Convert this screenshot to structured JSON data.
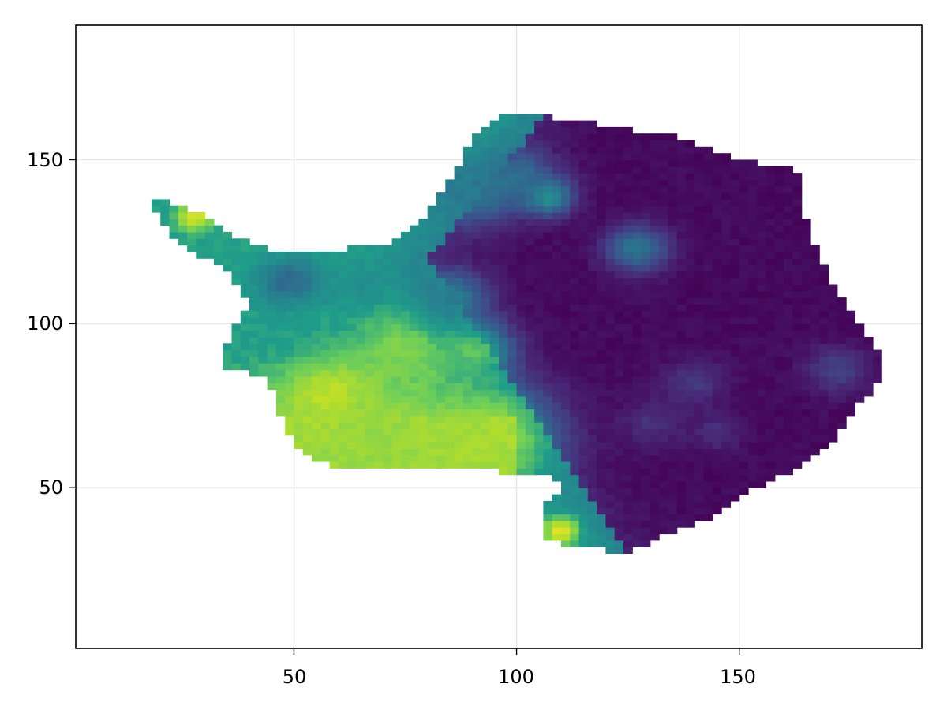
{
  "chart_data": {
    "type": "heatmap",
    "title": "",
    "xlabel": "",
    "ylabel": "",
    "xlim": [
      1,
      191
    ],
    "ylim": [
      1,
      191
    ],
    "xticks": [
      50,
      100,
      150
    ],
    "yticks": [
      50,
      100,
      150
    ],
    "xtick_labels": [
      "50",
      "100",
      "150"
    ],
    "ytick_labels": [
      "50",
      "100",
      "150"
    ],
    "grid": true,
    "colormap": "viridis",
    "nan_color": "#ffffff",
    "colors": {
      "viridis": [
        "#440154",
        "#482777",
        "#3f4a8a",
        "#31678e",
        "#26838f",
        "#1f9d8a",
        "#6cce5a",
        "#b6de2b",
        "#fee825"
      ],
      "grid": "#e5e5e5",
      "frame": "#000000"
    },
    "data_summary": {
      "landmass": "Antarctica",
      "extent_x": [
        18,
        182
      ],
      "extent_y": [
        30,
        165
      ],
      "high_values_region": "west / lower-left (peninsula coast and Ross/Weddell margins)",
      "low_values_region": "east plateau (right half)"
    }
  }
}
